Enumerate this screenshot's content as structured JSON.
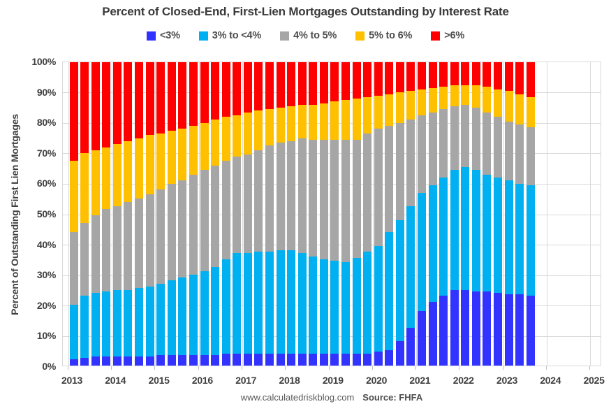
{
  "chart_data": {
    "type": "bar",
    "stacked": true,
    "title": "Percent of Closed-End, First-Lien Mortgages Outstanding by Interest Rate",
    "ylabel": "Percent of Outstanding First Lien Mortgages",
    "xlabel": "",
    "ylim": [
      0,
      100
    ],
    "ytick_labels": [
      "100%",
      "90%",
      "80%",
      "70%",
      "60%",
      "50%",
      "40%",
      "30%",
      "20%",
      "10%",
      "0%"
    ],
    "x_year_labels": [
      "2013",
      "2014",
      "2015",
      "2016",
      "2017",
      "2018",
      "2019",
      "2020",
      "2021",
      "2022",
      "2023",
      "2024",
      "2025"
    ],
    "legend_position": "top",
    "grid": {
      "horizontal_step_pct": 10,
      "vertical_per_year": true,
      "color": "#D9D9D9"
    },
    "categories": [
      "2013 Q1",
      "2013 Q2",
      "2013 Q3",
      "2013 Q4",
      "2014 Q1",
      "2014 Q2",
      "2014 Q3",
      "2014 Q4",
      "2015 Q1",
      "2015 Q2",
      "2015 Q3",
      "2015 Q4",
      "2016 Q1",
      "2016 Q2",
      "2016 Q3",
      "2016 Q4",
      "2017 Q1",
      "2017 Q2",
      "2017 Q3",
      "2017 Q4",
      "2018 Q1",
      "2018 Q2",
      "2018 Q3",
      "2018 Q4",
      "2019 Q1",
      "2019 Q2",
      "2019 Q3",
      "2019 Q4",
      "2020 Q1",
      "2020 Q2",
      "2020 Q3",
      "2020 Q4",
      "2021 Q1",
      "2021 Q2",
      "2021 Q3",
      "2021 Q4",
      "2022 Q1",
      "2022 Q2",
      "2022 Q3",
      "2022 Q4",
      "2023 Q1",
      "2023 Q2",
      "2023 Q3"
    ],
    "series": [
      {
        "name": "<3%",
        "color": "#3333FF",
        "values": [
          2.0,
          2.5,
          3.0,
          3.0,
          3.0,
          3.0,
          3.0,
          3.0,
          3.5,
          3.5,
          3.5,
          3.5,
          3.5,
          3.5,
          4.0,
          4.0,
          4.0,
          4.0,
          4.0,
          4.0,
          4.0,
          4.0,
          4.0,
          4.0,
          4.0,
          4.0,
          4.0,
          4.0,
          4.5,
          5.0,
          8.0,
          12.5,
          18.0,
          21.0,
          23.0,
          25.0,
          25.0,
          24.5,
          24.5,
          24.0,
          23.5,
          23.5,
          23.0
        ]
      },
      {
        "name": "3% to <4%",
        "color": "#00B0F0",
        "values": [
          18.0,
          20.5,
          21.0,
          21.5,
          22.0,
          22.0,
          22.5,
          23.0,
          23.5,
          24.5,
          25.5,
          26.5,
          27.5,
          29.0,
          31.0,
          33.0,
          33.0,
          33.5,
          33.5,
          34.0,
          34.0,
          33.0,
          32.0,
          31.0,
          30.5,
          30.0,
          31.5,
          33.5,
          35.0,
          39.0,
          40.0,
          40.0,
          39.0,
          38.5,
          39.0,
          39.5,
          40.5,
          40.0,
          38.5,
          38.0,
          37.5,
          36.5,
          36.5
        ]
      },
      {
        "name": "4% to 5%",
        "color": "#A6A6A6",
        "values": [
          24.0,
          24.0,
          25.5,
          27.0,
          27.5,
          29.0,
          29.5,
          30.5,
          31.0,
          32.0,
          32.0,
          33.0,
          33.5,
          33.5,
          32.5,
          32.0,
          32.5,
          33.5,
          35.0,
          35.5,
          36.0,
          38.0,
          38.5,
          39.5,
          40.0,
          40.5,
          39.0,
          39.0,
          38.5,
          35.0,
          32.0,
          28.5,
          25.5,
          24.0,
          22.5,
          21.0,
          20.5,
          20.5,
          20.5,
          20.0,
          19.5,
          19.5,
          19.0
        ]
      },
      {
        "name": "5% to 6%",
        "color": "#FFC000",
        "values": [
          23.5,
          23.0,
          21.5,
          20.5,
          20.5,
          20.0,
          20.0,
          19.5,
          18.5,
          17.5,
          17.0,
          16.0,
          15.5,
          15.0,
          14.5,
          13.5,
          14.0,
          13.0,
          12.0,
          11.5,
          11.5,
          11.0,
          11.5,
          12.0,
          12.5,
          13.0,
          13.5,
          12.0,
          11.0,
          10.5,
          10.0,
          9.5,
          8.5,
          8.0,
          7.5,
          7.0,
          6.5,
          7.5,
          8.5,
          9.0,
          10.0,
          10.0,
          10.0
        ]
      },
      {
        "name": ">6%",
        "color": "#FF0000",
        "values": [
          32.5,
          30.0,
          29.0,
          28.0,
          27.0,
          26.0,
          25.0,
          24.0,
          23.5,
          22.5,
          22.0,
          21.0,
          20.0,
          19.0,
          18.0,
          17.5,
          16.5,
          16.0,
          15.5,
          15.0,
          14.5,
          14.0,
          14.0,
          13.5,
          13.0,
          12.5,
          12.0,
          11.5,
          11.0,
          10.5,
          10.0,
          9.5,
          9.0,
          8.5,
          8.0,
          7.5,
          7.5,
          7.5,
          8.0,
          9.0,
          9.5,
          10.5,
          11.5
        ]
      }
    ]
  },
  "footer": {
    "site": "www.calculatedriskblog.com",
    "source": "Source: FHFA"
  }
}
